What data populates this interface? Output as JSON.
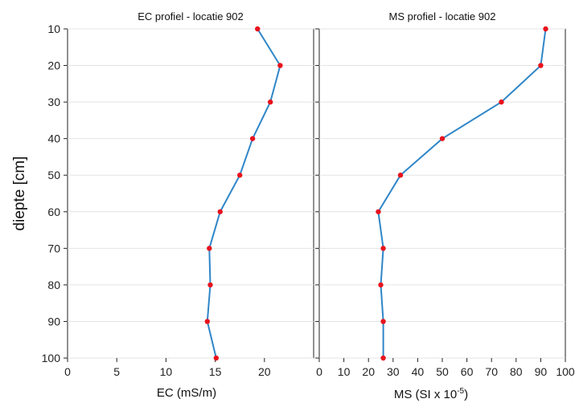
{
  "chart_data": [
    {
      "type": "line",
      "title": "EC profiel - locatie 902",
      "xlabel": "EC (mS/m)",
      "ylabel": "diepte [cm]",
      "xlim": [
        0,
        25
      ],
      "ylim": [
        100,
        10
      ],
      "y_inverted": true,
      "x_ticks": [
        0,
        5,
        10,
        15,
        20
      ],
      "y_ticks": [
        10,
        20,
        30,
        40,
        50,
        60,
        70,
        80,
        90,
        100
      ],
      "grid": "horizontal",
      "line_color": "#2f86c8",
      "marker_color": "#e8121c",
      "series": [
        {
          "x": [
            19.3,
            21.6,
            20.6,
            18.8,
            17.5,
            15.5,
            14.4,
            14.5,
            14.2,
            15.1
          ],
          "y": [
            10,
            20,
            30,
            40,
            50,
            60,
            70,
            80,
            90,
            100
          ]
        }
      ]
    },
    {
      "type": "line",
      "title": "MS profiel - locatie 902",
      "xlabel_main": "MS (SI x 10",
      "xlabel_sup": "-5",
      "xlabel_end": ")",
      "xlim": [
        0,
        100
      ],
      "ylim": [
        100,
        10
      ],
      "y_inverted": true,
      "x_ticks": [
        0,
        10,
        20,
        30,
        40,
        50,
        60,
        70,
        80,
        90,
        100
      ],
      "grid": "horizontal",
      "line_color": "#2f86c8",
      "marker_color": "#e8121c",
      "series": [
        {
          "x": [
            92,
            90,
            74,
            50,
            33,
            24,
            26,
            25,
            26,
            26
          ],
          "y": [
            10,
            20,
            30,
            40,
            50,
            60,
            70,
            80,
            90,
            100
          ]
        }
      ]
    }
  ]
}
